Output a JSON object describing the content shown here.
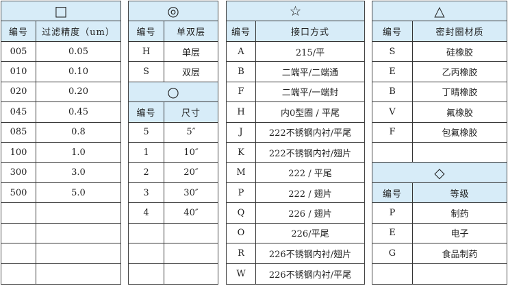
{
  "panel1": {
    "symbol": "□",
    "headers": [
      "编号",
      "过滤精度（um）"
    ],
    "rows": [
      [
        "005",
        "0.05"
      ],
      [
        "010",
        "0.10"
      ],
      [
        "020",
        "0.20"
      ],
      [
        "045",
        "0.45"
      ],
      [
        "085",
        "0.8"
      ],
      [
        "100",
        "1.0"
      ],
      [
        "300",
        "3.0"
      ],
      [
        "500",
        "5.0"
      ],
      [
        "",
        ""
      ],
      [
        "",
        ""
      ],
      [
        "",
        ""
      ],
      [
        "",
        ""
      ]
    ]
  },
  "panel2a": {
    "symbol": "◎",
    "headers": [
      "编号",
      "单双层"
    ],
    "rows": [
      [
        "H",
        "单层"
      ],
      [
        "S",
        "双层"
      ]
    ]
  },
  "panel2b": {
    "symbol": "○",
    "headers": [
      "编号",
      "尺寸"
    ],
    "rows": [
      [
        "5",
        "5″"
      ],
      [
        "1",
        "10″"
      ],
      [
        "2",
        "20″"
      ],
      [
        "3",
        "30″"
      ],
      [
        "4",
        "40″"
      ],
      [
        "",
        ""
      ],
      [
        "",
        ""
      ],
      [
        "",
        ""
      ]
    ]
  },
  "panel3": {
    "symbol": "☆",
    "headers": [
      "编号",
      "接口方式"
    ],
    "rows": [
      [
        "A",
        "215/平"
      ],
      [
        "B",
        "二端平/二端通"
      ],
      [
        "F",
        "二端平/一端封"
      ],
      [
        "H",
        "内0型圈 / 平尾"
      ],
      [
        "J",
        "222不锈钢内衬/平尾"
      ],
      [
        "K",
        "222不锈钢内衬/翅片"
      ],
      [
        "M",
        "222 / 平尾"
      ],
      [
        "P",
        "222 / 翅片"
      ],
      [
        "Q",
        "226 / 翅片"
      ],
      [
        "O",
        "226/平尾"
      ],
      [
        "R",
        "226不锈钢内衬/翅片"
      ],
      [
        "W",
        "226不锈钢内衬/平尾"
      ]
    ]
  },
  "panel4a": {
    "symbol": "△",
    "headers": [
      "编号",
      "密封圈材质"
    ],
    "rows": [
      [
        "S",
        "硅橡胶"
      ],
      [
        "E",
        "乙丙橡胶"
      ],
      [
        "B",
        "丁晴橡胶"
      ],
      [
        "V",
        "氟橡胶"
      ],
      [
        "F",
        "包氟橡胶"
      ],
      [
        "",
        ""
      ]
    ]
  },
  "panel4b": {
    "symbol": "◇",
    "headers": [
      "编号",
      "等级"
    ],
    "rows": [
      [
        "P",
        "制药"
      ],
      [
        "E",
        "电子"
      ],
      [
        "G",
        "食品制药"
      ],
      [
        "",
        ""
      ]
    ]
  },
  "colors": {
    "header_bg": "#d7ecf8",
    "border": "#333333"
  }
}
